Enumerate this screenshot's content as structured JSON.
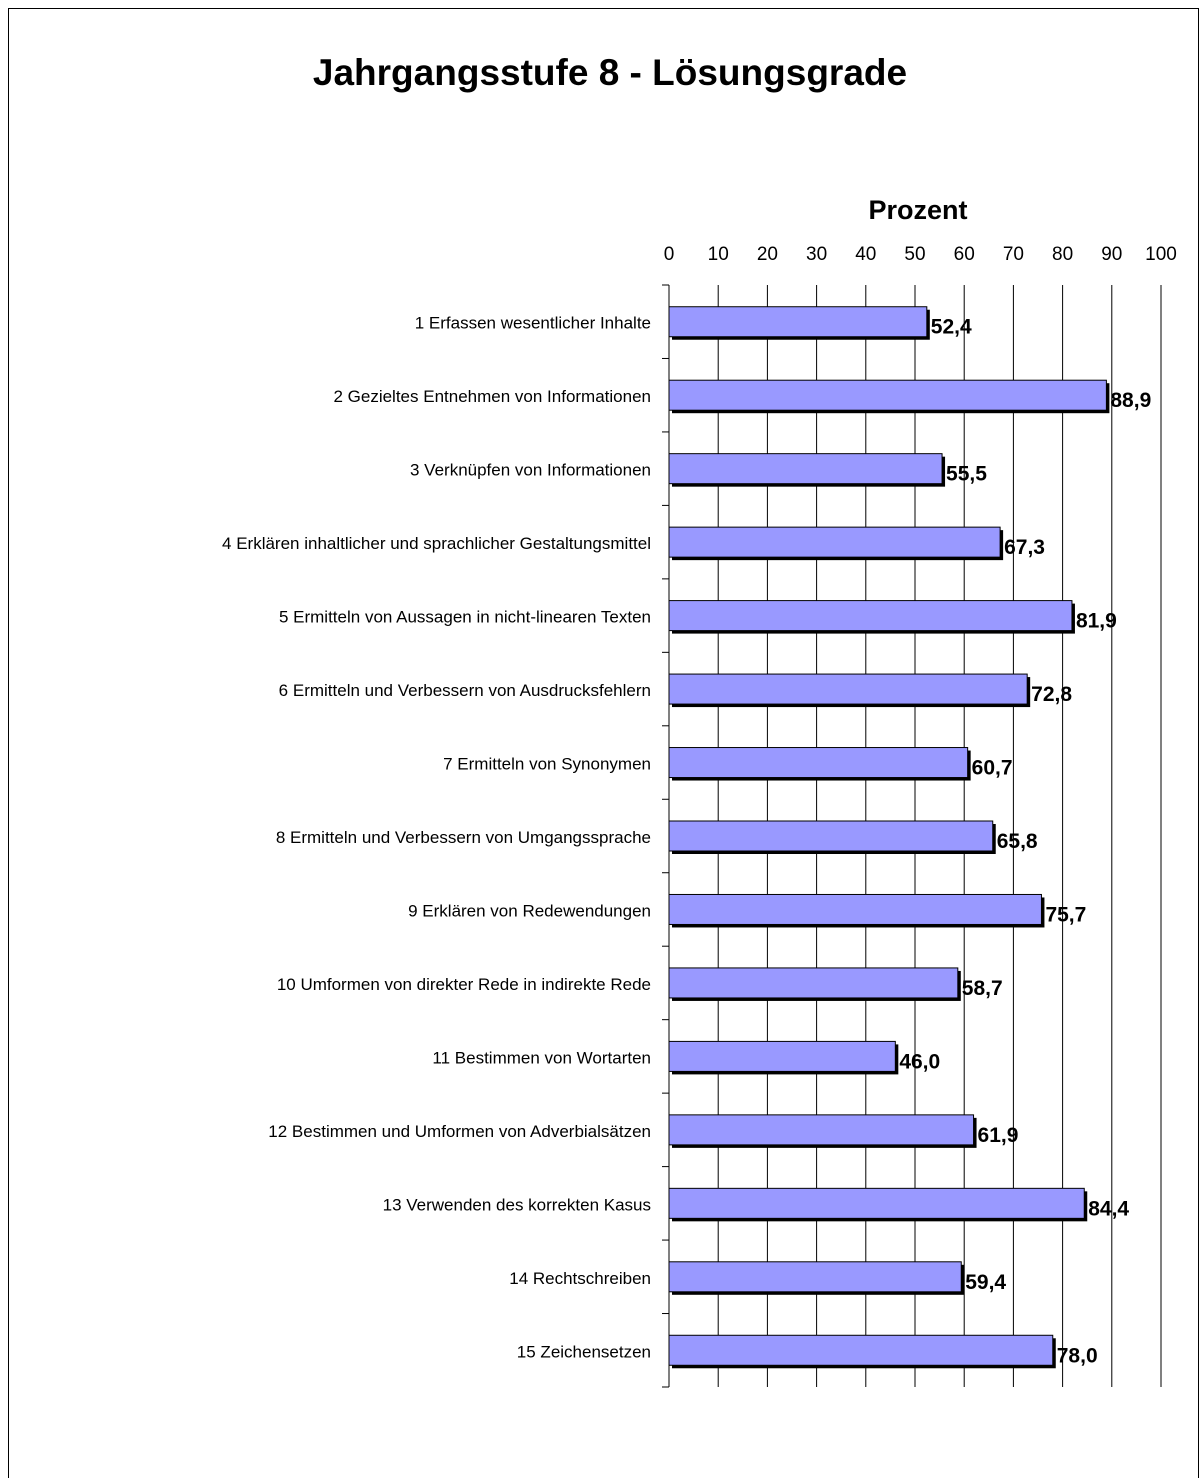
{
  "chart_data": {
    "type": "bar",
    "orientation": "horizontal",
    "title": "Jahrgangsstufe 8 - Lösungsgrade",
    "xlabel": "Prozent",
    "xlim": [
      0,
      100
    ],
    "xticks": [
      "0",
      "10",
      "20",
      "30",
      "40",
      "50",
      "60",
      "70",
      "80",
      "90",
      "100"
    ],
    "grid": "vertical",
    "bar_color": "#9999ff",
    "categories": [
      "1 Erfassen wesentlicher Inhalte",
      "2 Gezieltes Entnehmen von Informationen",
      "3 Verknüpfen von Informationen",
      "4 Erklären inhaltlicher und sprachlicher Gestaltungsmittel",
      "5 Ermitteln von Aussagen in nicht-linearen Texten",
      "6 Ermitteln und Verbessern von Ausdrucksfehlern",
      "7 Ermitteln von Synonymen",
      "8 Ermitteln und Verbessern von Umgangssprache",
      "9 Erklären von Redewendungen",
      "10 Umformen von direkter Rede in indirekte Rede",
      "11 Bestimmen von Wortarten",
      "12 Bestimmen und Umformen von Adverbialsätzen",
      "13 Verwenden des korrekten Kasus",
      "14 Rechtschreiben",
      "15 Zeichensetzen"
    ],
    "values": [
      52.4,
      88.9,
      55.5,
      67.3,
      81.9,
      72.8,
      60.7,
      65.8,
      75.7,
      58.7,
      46.0,
      61.9,
      84.4,
      59.4,
      78.0
    ],
    "value_labels": [
      "52,4",
      "88,9",
      "55,5",
      "67,3",
      "81,9",
      "72,8",
      "60,7",
      "65,8",
      "75,7",
      "58,7",
      "46,0",
      "61,9",
      "84,4",
      "59,4",
      "78,0"
    ]
  }
}
